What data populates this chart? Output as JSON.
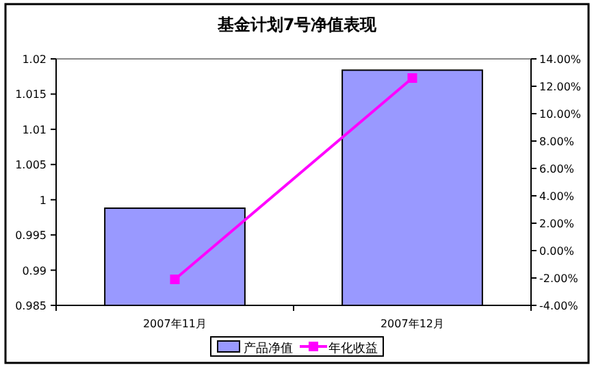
{
  "chart_data": {
    "type": "bar",
    "title": "基金计划7号净值表现",
    "categories": [
      "2007年11月",
      "2007年12月"
    ],
    "series": [
      {
        "name": "产品净值",
        "color": "#9999ff",
        "values": [
          0.9988,
          1.0184
        ]
      },
      {
        "name": "年化收益",
        "type": "line",
        "axis": "y2",
        "color": "#ff00ff",
        "marker": "square",
        "values": [
          -2.1,
          12.6
        ]
      }
    ],
    "ylim": [
      0.985,
      1.02
    ],
    "yticks": [
      0.985,
      0.99,
      0.995,
      1,
      1.005,
      1.01,
      1.015,
      1.02
    ],
    "y2lim": [
      -4,
      14
    ],
    "y2ticks": [
      {
        "value": -4,
        "label": "-4.00%"
      },
      {
        "value": -2,
        "label": "-2.00%"
      },
      {
        "value": 0,
        "label": "0.00%"
      },
      {
        "value": 2,
        "label": "2.00%"
      },
      {
        "value": 4,
        "label": "4.00%"
      },
      {
        "value": 6,
        "label": "6.00%"
      },
      {
        "value": 8,
        "label": "8.00%"
      },
      {
        "value": 10,
        "label": "10.00%"
      },
      {
        "value": 12,
        "label": "12.00%"
      },
      {
        "value": 14,
        "label": "14.00%"
      }
    ],
    "legend": "bottom",
    "grid": false
  }
}
